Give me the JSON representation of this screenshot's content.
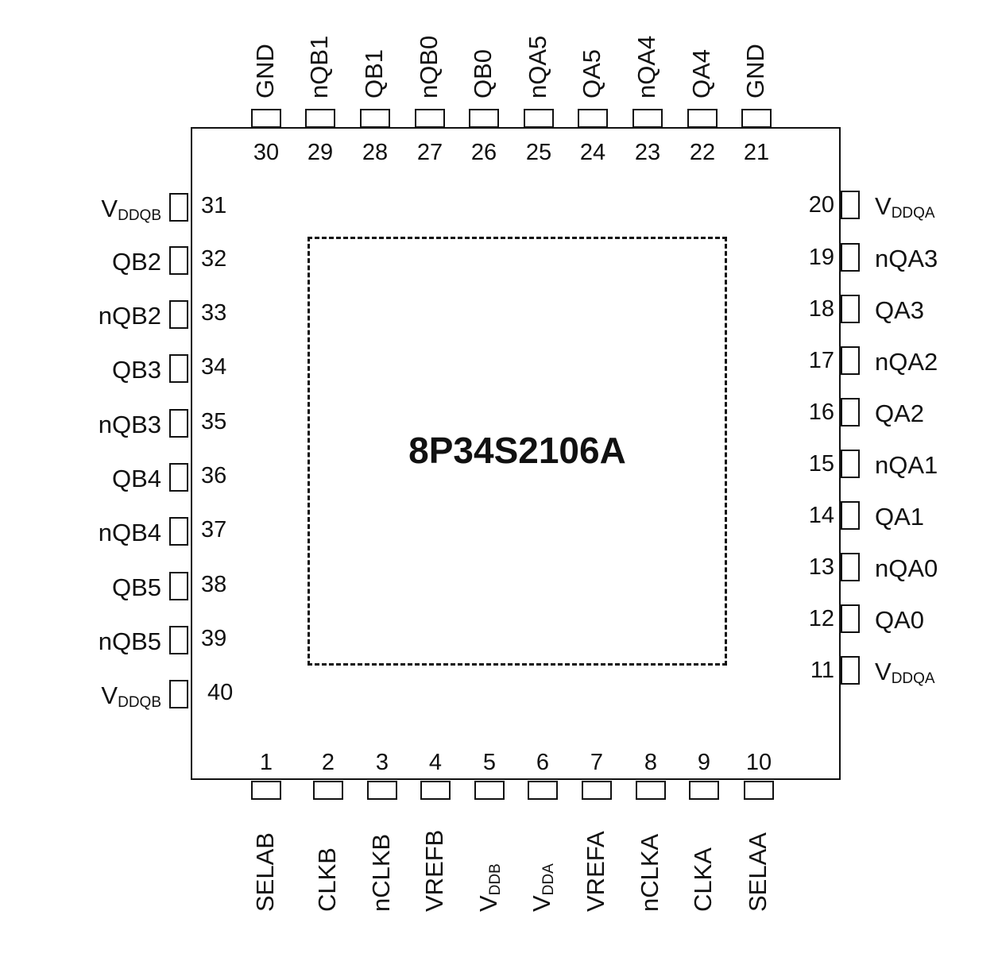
{
  "diagram": {
    "title": "8P34S2106A",
    "type": "pin-assignment",
    "package_pins": 40
  },
  "pins": {
    "top": [
      {
        "num": "30",
        "name": "GND",
        "sub": ""
      },
      {
        "num": "29",
        "name": "nQB1",
        "sub": ""
      },
      {
        "num": "28",
        "name": "QB1",
        "sub": ""
      },
      {
        "num": "27",
        "name": "nQB0",
        "sub": ""
      },
      {
        "num": "26",
        "name": "QB0",
        "sub": ""
      },
      {
        "num": "25",
        "name": "nQA5",
        "sub": ""
      },
      {
        "num": "24",
        "name": "QA5",
        "sub": ""
      },
      {
        "num": "23",
        "name": "nQA4",
        "sub": ""
      },
      {
        "num": "22",
        "name": "QA4",
        "sub": ""
      },
      {
        "num": "21",
        "name": "GND",
        "sub": ""
      }
    ],
    "left": [
      {
        "num": "31",
        "name": "V",
        "sub": "DDQB"
      },
      {
        "num": "32",
        "name": "QB2",
        "sub": ""
      },
      {
        "num": "33",
        "name": "nQB2",
        "sub": ""
      },
      {
        "num": "34",
        "name": "QB3",
        "sub": ""
      },
      {
        "num": "35",
        "name": "nQB3",
        "sub": ""
      },
      {
        "num": "36",
        "name": "QB4",
        "sub": ""
      },
      {
        "num": "37",
        "name": "nQB4",
        "sub": ""
      },
      {
        "num": "38",
        "name": "QB5",
        "sub": ""
      },
      {
        "num": "39",
        "name": "nQB5",
        "sub": ""
      },
      {
        "num": "40",
        "name": "V",
        "sub": "DDQB"
      }
    ],
    "right": [
      {
        "num": "20",
        "name": "V",
        "sub": "DDQA"
      },
      {
        "num": "19",
        "name": "nQA3",
        "sub": ""
      },
      {
        "num": "18",
        "name": "QA3",
        "sub": ""
      },
      {
        "num": "17",
        "name": "nQA2",
        "sub": ""
      },
      {
        "num": "16",
        "name": "QA2",
        "sub": ""
      },
      {
        "num": "15",
        "name": "nQA1",
        "sub": ""
      },
      {
        "num": "14",
        "name": "QA1",
        "sub": ""
      },
      {
        "num": "13",
        "name": "nQA0",
        "sub": ""
      },
      {
        "num": "12",
        "name": "QA0",
        "sub": ""
      },
      {
        "num": "11",
        "name": "V",
        "sub": "DDQA"
      }
    ],
    "bottom": [
      {
        "num": "1",
        "name": "SELAB",
        "sub": ""
      },
      {
        "num": "2",
        "name": "CLKB",
        "sub": ""
      },
      {
        "num": "3",
        "name": "nCLKB",
        "sub": ""
      },
      {
        "num": "4",
        "name": "VREFB",
        "sub": ""
      },
      {
        "num": "5",
        "name": "V",
        "sub": "DDB"
      },
      {
        "num": "6",
        "name": "V",
        "sub": "DDA"
      },
      {
        "num": "7",
        "name": "VREFA",
        "sub": ""
      },
      {
        "num": "8",
        "name": "nCLKA",
        "sub": ""
      },
      {
        "num": "9",
        "name": "CLKA",
        "sub": ""
      },
      {
        "num": "10",
        "name": "SELAA",
        "sub": ""
      }
    ]
  }
}
